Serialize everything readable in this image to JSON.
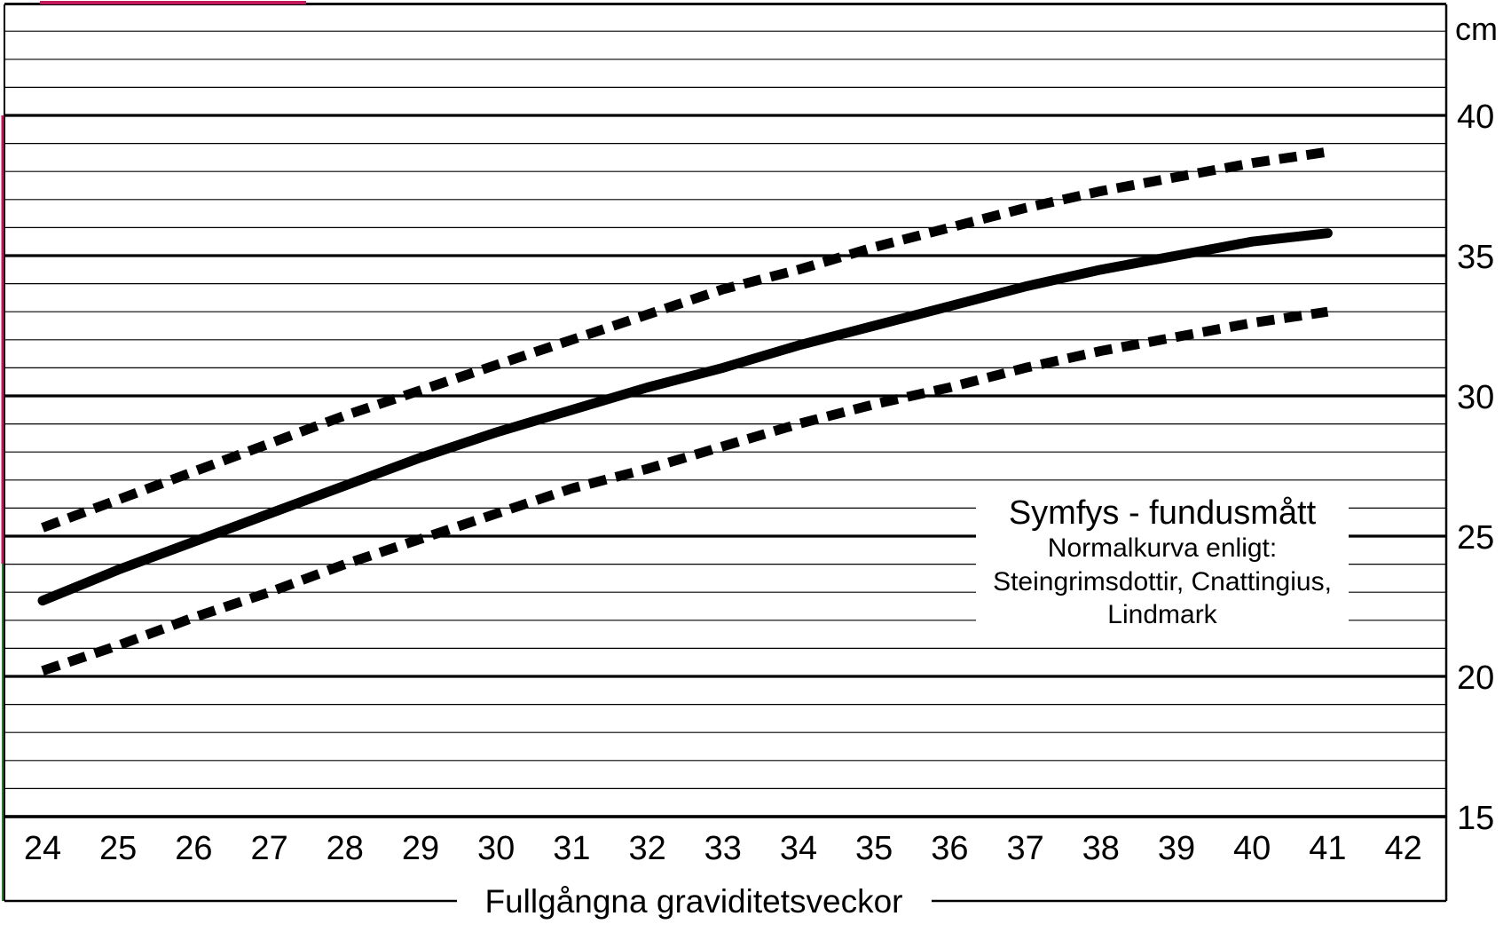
{
  "chart_data": {
    "type": "line",
    "title": "",
    "xlabel": "Fullgångna graviditetsveckor",
    "ylabel": "",
    "y_unit": "cm",
    "xlim": [
      23.5,
      43.5
    ],
    "ylim": [
      15,
      44
    ],
    "x_ticks": [
      24,
      25,
      26,
      27,
      28,
      29,
      30,
      31,
      32,
      33,
      34,
      35,
      36,
      37,
      38,
      39,
      40,
      41,
      42
    ],
    "y_ticks": [
      15,
      20,
      25,
      30,
      35,
      40
    ],
    "grid": true,
    "x": [
      24,
      25,
      26,
      27,
      28,
      29,
      30,
      31,
      32,
      33,
      34,
      35,
      36,
      37,
      38,
      39,
      40,
      41
    ],
    "series": [
      {
        "style": "dashed",
        "values": [
          25.3,
          26.3,
          27.3,
          28.3,
          29.3,
          30.2,
          31.1,
          32.0,
          32.9,
          33.8,
          34.5,
          35.3,
          36.0,
          36.7,
          37.3,
          37.8,
          38.3,
          38.7
        ]
      },
      {
        "style": "solid",
        "values": [
          22.7,
          23.8,
          24.8,
          25.8,
          26.8,
          27.8,
          28.7,
          29.5,
          30.3,
          31.0,
          31.8,
          32.5,
          33.2,
          33.9,
          34.5,
          35.0,
          35.5,
          35.8
        ]
      },
      {
        "style": "dashed",
        "values": [
          20.2,
          21.1,
          22.1,
          23.0,
          24.0,
          24.9,
          25.8,
          26.7,
          27.4,
          28.2,
          29.0,
          29.7,
          30.3,
          31.0,
          31.6,
          32.1,
          32.6,
          33.0
        ]
      }
    ],
    "legend": {
      "position": "lower-right",
      "lines": [
        "Symfys - fundusmått",
        "Normalkurva enligt:",
        "Steingrimsdottir, Cnattingius,",
        "Lindmark"
      ]
    }
  },
  "colors": {
    "ink": "#000000",
    "marker_pink": "#c2185b",
    "marker_green": "#2e7d32"
  }
}
